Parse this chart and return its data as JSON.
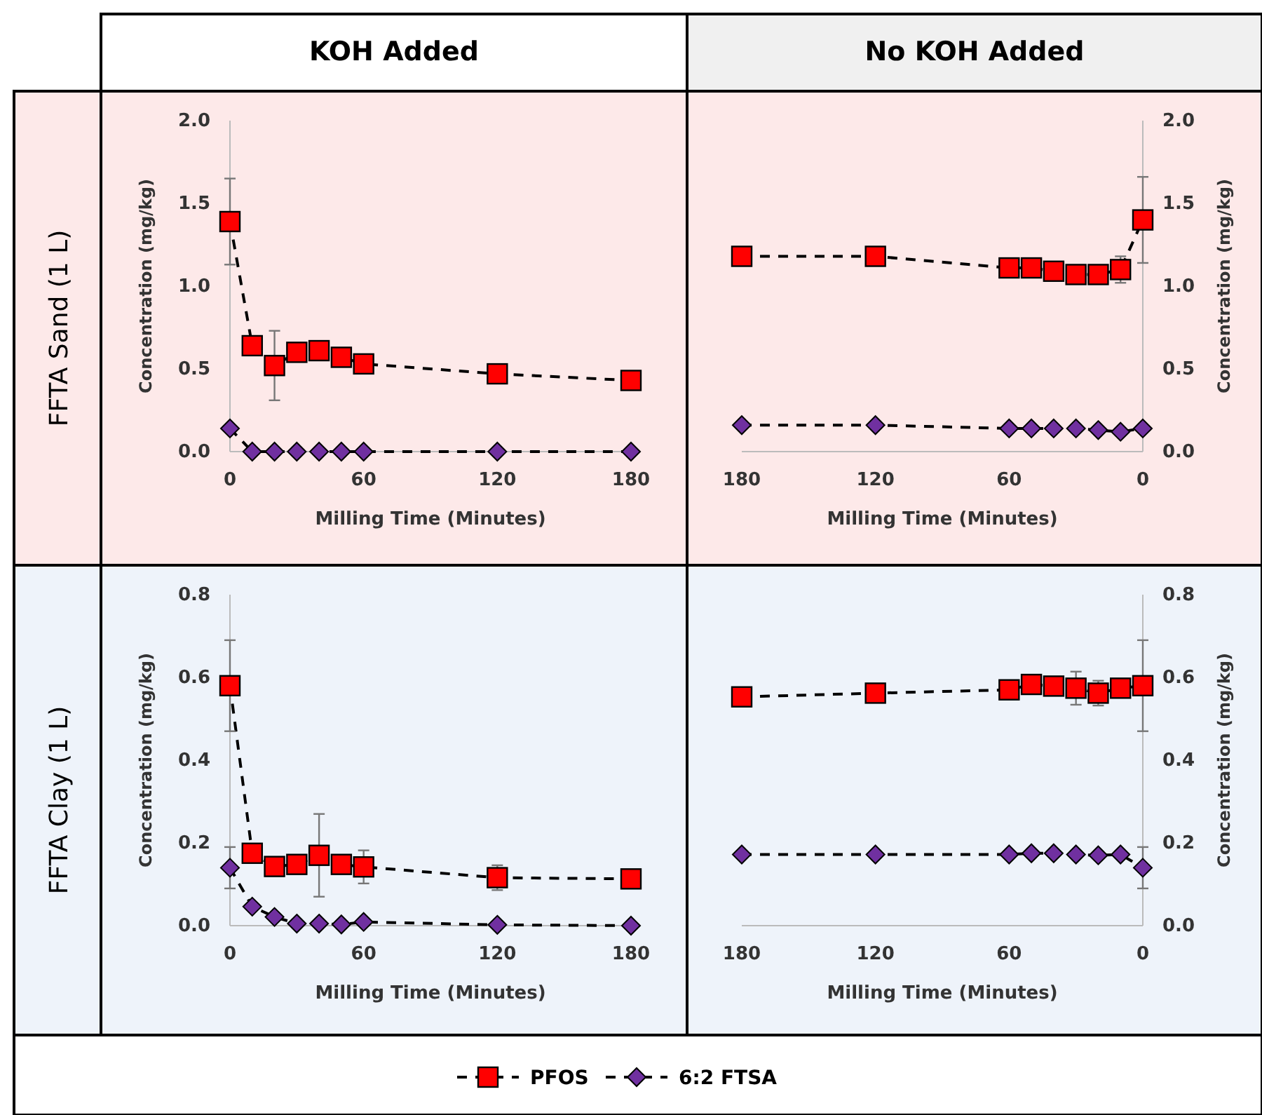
{
  "chart_data": [
    {
      "type": "line",
      "title": "KOH Added",
      "annotations": [
        "FFTA Sand (1 L)"
      ],
      "xlabel": "Milling Time (Minutes)",
      "ylabel": "Concentration (mg/kg)",
      "xlim": [
        0,
        180
      ],
      "xticks": [
        0,
        60,
        120,
        180
      ],
      "ylim": [
        0,
        2
      ],
      "yticks": [
        {
          "value": 0,
          "label": "0.0"
        },
        {
          "value": 0.5,
          "label": "0.5"
        },
        {
          "value": 1,
          "label": "1.0"
        },
        {
          "value": 1.5,
          "label": "1.5"
        },
        {
          "value": 2,
          "label": "2.0"
        }
      ],
      "line_style": "dashed",
      "legend": "bottom",
      "x": [
        0,
        10,
        20,
        30,
        40,
        50,
        60,
        120,
        180
      ],
      "series": [
        {
          "name": "PFOS",
          "color": "#ff0000",
          "marker": "square",
          "values": [
            1.39,
            0.64,
            0.52,
            0.6,
            0.61,
            0.57,
            0.53,
            0.47,
            0.43
          ],
          "errors": [
            0.26,
            null,
            0.21,
            null,
            null,
            null,
            null,
            null,
            null
          ]
        },
        {
          "name": "6:2 FTSA",
          "color": "#7030a0",
          "marker": "diamond",
          "values": [
            0.14,
            0,
            0,
            0,
            0,
            0,
            0,
            0,
            0
          ]
        }
      ]
    },
    {
      "type": "line",
      "title": "No KOH Added",
      "xlabel": "Milling Time (Minutes)",
      "y2label": "Concentration (mg/kg)",
      "xlim": [
        180,
        0
      ],
      "xticks": [
        180,
        120,
        60,
        0
      ],
      "y2lim": [
        0,
        2
      ],
      "y2ticks": [
        {
          "value": 0,
          "label": "0.0"
        },
        {
          "value": 0.5,
          "label": "0.5"
        },
        {
          "value": 1,
          "label": "1.0"
        },
        {
          "value": 1.5,
          "label": "1.5"
        },
        {
          "value": 2,
          "label": "2.0"
        }
      ],
      "line_style": "dashed",
      "x": [
        180,
        120,
        60,
        50,
        40,
        30,
        20,
        10,
        0
      ],
      "series": [
        {
          "color": "#ff0000",
          "marker": "square",
          "axis": "y2",
          "values": [
            1.18,
            1.18,
            1.11,
            1.11,
            1.09,
            1.07,
            1.07,
            1.1,
            1.4
          ],
          "errors": [
            null,
            null,
            null,
            null,
            null,
            null,
            null,
            0.08,
            0.26
          ]
        },
        {
          "color": "#7030a0",
          "marker": "diamond",
          "axis": "y2",
          "values": [
            0.16,
            0.16,
            0.14,
            0.14,
            0.14,
            0.14,
            0.13,
            0.12,
            0.14
          ]
        }
      ]
    },
    {
      "type": "line",
      "annotations": [
        "FFTA Clay (1 L)"
      ],
      "xlabel": "Milling Time (Minutes)",
      "ylabel": "Concentration (mg/kg)",
      "xlim": [
        0,
        180
      ],
      "xticks": [
        0,
        60,
        120,
        180
      ],
      "ylim": [
        0,
        0.8
      ],
      "yticks": [
        {
          "value": 0,
          "label": "0.0"
        },
        0.2,
        0.4,
        0.6,
        0.8
      ],
      "line_style": "dashed",
      "x": [
        0,
        10,
        20,
        30,
        40,
        50,
        60,
        120,
        180
      ],
      "series": [
        {
          "color": "#ff0000",
          "marker": "square",
          "values": [
            0.58,
            0.175,
            0.143,
            0.148,
            0.17,
            0.148,
            0.142,
            0.116,
            0.113
          ],
          "errors": [
            0.11,
            null,
            null,
            null,
            0.1,
            null,
            0.04,
            0.03,
            null
          ]
        },
        {
          "color": "#7030a0",
          "marker": "diamond",
          "values": [
            0.14,
            0.046,
            0.021,
            0.005,
            0.005,
            0.003,
            0.009,
            0.002,
            0
          ],
          "errors": [
            0.05,
            null,
            null,
            null,
            null,
            null,
            null,
            null,
            null
          ]
        }
      ]
    },
    {
      "type": "line",
      "xlabel": "Milling Time (Minutes)",
      "y2label": "Concentration (mg/kg)",
      "xlim": [
        180,
        0
      ],
      "xticks": [
        180,
        120,
        60,
        0
      ],
      "y2lim": [
        0,
        0.8
      ],
      "y2ticks": [
        {
          "value": 0,
          "label": "0.0"
        },
        0.2,
        0.4,
        0.6,
        0.8
      ],
      "line_style": "dashed",
      "x": [
        180,
        120,
        60,
        50,
        40,
        30,
        20,
        10,
        0
      ],
      "series": [
        {
          "color": "#ff0000",
          "marker": "square",
          "axis": "y2",
          "values": [
            0.553,
            0.562,
            0.57,
            0.583,
            0.579,
            0.574,
            0.562,
            0.574,
            0.58
          ],
          "errors": [
            null,
            null,
            null,
            null,
            null,
            0.04,
            0.03,
            null,
            0.11
          ]
        },
        {
          "color": "#7030a0",
          "marker": "diamond",
          "axis": "y2",
          "values": [
            0.172,
            0.172,
            0.172,
            0.175,
            0.175,
            0.172,
            0.17,
            0.172,
            0.14
          ],
          "errors": [
            null,
            null,
            null,
            null,
            null,
            null,
            null,
            null,
            0.05
          ]
        }
      ]
    }
  ]
}
